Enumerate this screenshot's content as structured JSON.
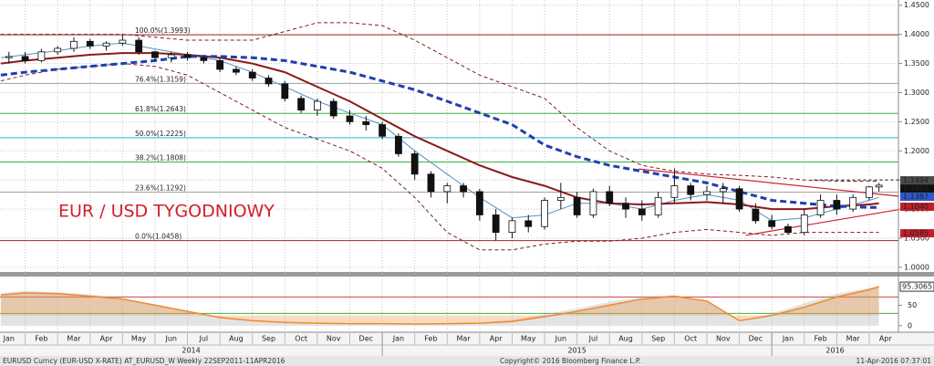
{
  "chart_data": [
    {
      "type": "candlestick",
      "title": "EUR / USD TYGODNIOWY",
      "xlim": [
        0.225,
        27.9
      ],
      "ylim": [
        0.992,
        1.459
      ],
      "grid": true,
      "yticks": [
        {
          "value": 1.0,
          "label": "1.0000"
        },
        {
          "value": 1.05,
          "label": "1.0500"
        },
        {
          "value": 1.1,
          "label": "1.1000"
        },
        {
          "value": 1.15,
          "label": "1.1500"
        },
        {
          "value": 1.2,
          "label": "1.2000"
        },
        {
          "value": 1.25,
          "label": "1.2500"
        },
        {
          "value": 1.3,
          "label": "1.3000"
        },
        {
          "value": 1.35,
          "label": "1.3500"
        },
        {
          "value": 1.4,
          "label": "1.4000"
        },
        {
          "value": 1.45,
          "label": "1.4500"
        }
      ],
      "candles": {
        "x": [
          0.5,
          1,
          1.5,
          2,
          2.5,
          3,
          3.5,
          4,
          4.5,
          5,
          5.5,
          6,
          6.5,
          7,
          7.5,
          8,
          8.5,
          9,
          9.5,
          10,
          10.5,
          11,
          11.5,
          12,
          12.5,
          13,
          13.5,
          14,
          14.5,
          15,
          15.5,
          16,
          16.5,
          17,
          17.5,
          18,
          18.5,
          19,
          19.5,
          20,
          20.5,
          21,
          21.5,
          22,
          22.5,
          23,
          23.5,
          24,
          24.5,
          25,
          25.5,
          26,
          26.5,
          27,
          27.3
        ],
        "open": [
          1.36,
          1.362,
          1.355,
          1.37,
          1.376,
          1.388,
          1.38,
          1.385,
          1.39,
          1.37,
          1.36,
          1.365,
          1.36,
          1.355,
          1.34,
          1.335,
          1.325,
          1.315,
          1.29,
          1.27,
          1.285,
          1.26,
          1.25,
          1.245,
          1.225,
          1.195,
          1.16,
          1.13,
          1.14,
          1.13,
          1.09,
          1.06,
          1.08,
          1.07,
          1.115,
          1.12,
          1.09,
          1.13,
          1.11,
          1.1,
          1.09,
          1.12,
          1.14,
          1.125,
          1.13,
          1.135,
          1.1,
          1.08,
          1.07,
          1.06,
          1.09,
          1.115,
          1.1,
          1.12,
          1.138
        ],
        "high": [
          1.37,
          1.37,
          1.375,
          1.38,
          1.395,
          1.392,
          1.388,
          1.399,
          1.395,
          1.372,
          1.37,
          1.37,
          1.365,
          1.36,
          1.345,
          1.34,
          1.33,
          1.32,
          1.295,
          1.29,
          1.29,
          1.27,
          1.26,
          1.25,
          1.23,
          1.2,
          1.165,
          1.145,
          1.145,
          1.135,
          1.1,
          1.085,
          1.09,
          1.12,
          1.145,
          1.13,
          1.135,
          1.14,
          1.12,
          1.115,
          1.13,
          1.17,
          1.145,
          1.14,
          1.145,
          1.14,
          1.11,
          1.09,
          1.075,
          1.1,
          1.125,
          1.125,
          1.125,
          1.14,
          1.145
        ],
        "low": [
          1.35,
          1.35,
          1.352,
          1.365,
          1.37,
          1.375,
          1.372,
          1.38,
          1.365,
          1.355,
          1.352,
          1.355,
          1.35,
          1.335,
          1.33,
          1.32,
          1.31,
          1.285,
          1.265,
          1.26,
          1.255,
          1.245,
          1.235,
          1.22,
          1.19,
          1.15,
          1.12,
          1.11,
          1.12,
          1.08,
          1.046,
          1.05,
          1.06,
          1.065,
          1.1,
          1.085,
          1.085,
          1.105,
          1.085,
          1.08,
          1.085,
          1.11,
          1.115,
          1.115,
          1.11,
          1.095,
          1.075,
          1.065,
          1.057,
          1.055,
          1.085,
          1.09,
          1.095,
          1.115,
          1.13
        ],
        "close": [
          1.362,
          1.355,
          1.37,
          1.376,
          1.388,
          1.38,
          1.385,
          1.39,
          1.37,
          1.36,
          1.365,
          1.36,
          1.355,
          1.34,
          1.335,
          1.325,
          1.315,
          1.29,
          1.27,
          1.285,
          1.26,
          1.25,
          1.245,
          1.225,
          1.195,
          1.16,
          1.13,
          1.14,
          1.13,
          1.09,
          1.06,
          1.08,
          1.07,
          1.115,
          1.12,
          1.09,
          1.13,
          1.11,
          1.1,
          1.09,
          1.12,
          1.14,
          1.125,
          1.13,
          1.135,
          1.1,
          1.08,
          1.07,
          1.06,
          1.09,
          1.115,
          1.1,
          1.12,
          1.138,
          1.141
        ]
      },
      "x": [
        0.25,
        1,
        2,
        3,
        4,
        5,
        6,
        7,
        8,
        9,
        10,
        11,
        12,
        13,
        14,
        15,
        16,
        17,
        18,
        19,
        20,
        21,
        22,
        23,
        24,
        25,
        26,
        27,
        27.3
      ],
      "series": [
        {
          "color": "#7a1f24",
          "dash": true,
          "width": 1,
          "values": [
            1.4,
            1.4,
            1.4,
            1.4,
            1.4,
            1.395,
            1.39,
            1.39,
            1.39,
            1.405,
            1.42,
            1.42,
            1.415,
            1.39,
            1.36,
            1.33,
            1.31,
            1.29,
            1.24,
            1.2,
            1.175,
            1.165,
            1.16,
            1.158,
            1.155,
            1.15,
            1.148,
            1.148,
            1.148
          ]
        },
        {
          "color": "#7a1f24",
          "dash": true,
          "width": 1,
          "values": [
            1.32,
            1.33,
            1.34,
            1.345,
            1.35,
            1.345,
            1.33,
            1.3,
            1.27,
            1.24,
            1.22,
            1.2,
            1.17,
            1.12,
            1.06,
            1.03,
            1.03,
            1.04,
            1.045,
            1.045,
            1.05,
            1.06,
            1.065,
            1.06,
            1.055,
            1.06,
            1.06,
            1.06,
            1.06
          ]
        },
        {
          "color": "#5a8fc0",
          "dash": false,
          "width": 1,
          "values": [
            1.36,
            1.365,
            1.372,
            1.38,
            1.385,
            1.375,
            1.365,
            1.355,
            1.335,
            1.31,
            1.285,
            1.265,
            1.245,
            1.2,
            1.16,
            1.12,
            1.085,
            1.09,
            1.11,
            1.11,
            1.1,
            1.115,
            1.125,
            1.115,
            1.08,
            1.085,
            1.1,
            1.115,
            1.12
          ]
        },
        {
          "color": "#8b1a1a",
          "dash": false,
          "width": 2,
          "values": [
            1.35,
            1.355,
            1.36,
            1.365,
            1.368,
            1.368,
            1.365,
            1.36,
            1.35,
            1.335,
            1.31,
            1.285,
            1.255,
            1.225,
            1.2,
            1.175,
            1.155,
            1.14,
            1.12,
            1.11,
            1.108,
            1.11,
            1.112,
            1.108,
            1.1,
            1.1,
            1.105,
            1.108,
            1.11
          ]
        },
        {
          "color": "#1f3fb0",
          "dash": true,
          "width": 3,
          "values": [
            1.33,
            1.335,
            1.34,
            1.345,
            1.35,
            1.355,
            1.362,
            1.362,
            1.36,
            1.355,
            1.345,
            1.335,
            1.32,
            1.305,
            1.285,
            1.265,
            1.245,
            1.21,
            1.19,
            1.175,
            1.165,
            1.155,
            1.145,
            1.13,
            1.115,
            1.11,
            1.105,
            1.103,
            1.103
          ]
        }
      ],
      "fib_levels": [
        {
          "value": 1.3993,
          "label": "100.0%(1.3993)",
          "color": "#a0282d"
        },
        {
          "value": 1.3159,
          "label": "76.4%(1.3159)",
          "color": "#a0a0a0"
        },
        {
          "value": 1.2643,
          "label": "61.8%(1.2643)",
          "color": "#3cb043"
        },
        {
          "value": 1.2225,
          "label": "50.0%(1.2225)",
          "color": "#27b3c9"
        },
        {
          "value": 1.1808,
          "label": "38.2%(1.1808)",
          "color": "#3cb043"
        },
        {
          "value": 1.1292,
          "label": "23.6%(1.1292)",
          "color": "#a0a0a0"
        },
        {
          "value": 1.0458,
          "label": "0.0%(1.0458)",
          "color": "#a0282d"
        }
      ],
      "trendlines": [
        {
          "x": [
            19.9,
            27.9
          ],
          "values": [
            1.169,
            1.122
          ],
          "color": "#d02030",
          "dash": false
        },
        {
          "x": [
            23.2,
            27.9
          ],
          "values": [
            1.055,
            1.099
          ],
          "color": "#d02030",
          "dash": false
        },
        {
          "x": [
            25.3,
            27.9
          ],
          "values": [
            1.15,
            1.15
          ],
          "color": "#222222",
          "dash": true
        }
      ],
      "price_tags": [
        {
          "value": 1.1494,
          "label": "1.1494",
          "color": "#4a4a4a"
        },
        {
          "value": 1.141,
          "label": "1.1410",
          "color": "#111111"
        },
        {
          "value": 1.1387,
          "label": "1.1387",
          "color": "#2c58c8"
        },
        {
          "value": 1.104,
          "label": "1.1040",
          "color": "#c0202a"
        },
        {
          "value": 1.0585,
          "label": "1.0585",
          "color": "#c0202a"
        }
      ]
    },
    {
      "type": "oscillator",
      "xlim": [
        0.225,
        27.9
      ],
      "ylim": [
        -16,
        120
      ],
      "yticks": [
        0,
        50
      ],
      "levels": [
        {
          "value": 70,
          "color": "#d04040"
        },
        {
          "value": 30,
          "color": "#40b040"
        }
      ],
      "x": [
        0.25,
        1,
        2,
        3,
        4,
        5,
        6,
        7,
        8,
        9,
        10,
        11,
        12,
        13,
        14,
        15,
        16,
        17,
        18,
        19,
        20,
        21,
        22,
        23,
        24,
        25,
        26,
        27,
        27.3
      ],
      "series": [
        {
          "color": "#b0b0b0",
          "values": [
            80,
            85,
            82,
            76,
            68,
            52,
            36,
            22,
            14,
            9,
            7,
            6,
            6,
            5,
            6,
            8,
            14,
            28,
            42,
            58,
            70,
            75,
            58,
            10,
            30,
            55,
            78,
            92,
            98
          ]
        },
        {
          "color": "#f08a30",
          "values": [
            75,
            80,
            78,
            72,
            65,
            50,
            35,
            20,
            12,
            8,
            6,
            5,
            5,
            4,
            5,
            6,
            10,
            22,
            35,
            50,
            65,
            72,
            60,
            12,
            25,
            45,
            70,
            88,
            95.3065
          ]
        }
      ],
      "last_tag": 95.3065,
      "xticks": [
        {
          "value": 0,
          "label": "Jan"
        },
        {
          "value": 1,
          "label": "Feb"
        },
        {
          "value": 2,
          "label": "Mar"
        },
        {
          "value": 3,
          "label": "Apr"
        },
        {
          "value": 4,
          "label": "May"
        },
        {
          "value": 5,
          "label": "Jun"
        },
        {
          "value": 6,
          "label": "Jul"
        },
        {
          "value": 7,
          "label": "Aug"
        },
        {
          "value": 8,
          "label": "Sep"
        },
        {
          "value": 9,
          "label": "Oct"
        },
        {
          "value": 10,
          "label": "Nov"
        },
        {
          "value": 11,
          "label": "Dec"
        },
        {
          "value": 12,
          "label": "Jan"
        },
        {
          "value": 13,
          "label": "Feb"
        },
        {
          "value": 14,
          "label": "Mar"
        },
        {
          "value": 15,
          "label": "Apr"
        },
        {
          "value": 16,
          "label": "May"
        },
        {
          "value": 17,
          "label": "Jun"
        },
        {
          "value": 18,
          "label": "Jul"
        },
        {
          "value": 19,
          "label": "Aug"
        },
        {
          "value": 20,
          "label": "Sep"
        },
        {
          "value": 21,
          "label": "Oct"
        },
        {
          "value": 22,
          "label": "Nov"
        },
        {
          "value": 23,
          "label": "Dec"
        },
        {
          "value": 24,
          "label": "Jan"
        },
        {
          "value": 25,
          "label": "Feb"
        },
        {
          "value": 26,
          "label": "Mar"
        },
        {
          "value": 27,
          "label": "Apr"
        }
      ],
      "year_ticks": [
        {
          "value": 0,
          "label": "2014"
        },
        {
          "value": 12,
          "label": "2015"
        },
        {
          "value": 24,
          "label": "2016"
        }
      ]
    }
  ],
  "footer": {
    "left": "EURUSD Curncy (EUR-USD X-RATE) AT_EURUSD_W  Weekly 22SEP2011-11APR2016",
    "center": "Copyright© 2016 Bloomberg Finance L.P.",
    "right": "11-Apr-2016 07:37:01"
  }
}
